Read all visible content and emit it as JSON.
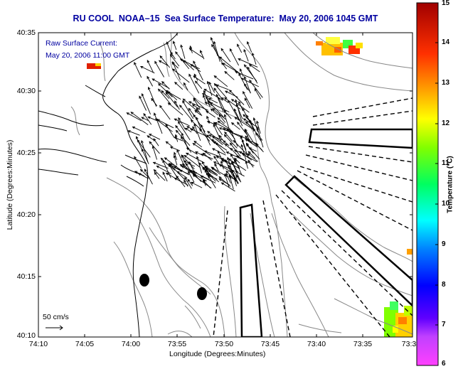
{
  "title": "RU COOL  NOAA–15  Sea Surface Temperature:  May 20, 2006 1045 GMT",
  "legend_text": {
    "line1": "Raw Surface Current:",
    "line2": "May 20, 2006 11:00 GMT",
    "scale": "50 cm/s"
  },
  "axes": {
    "xlabel": "Longitude (Degrees:Minutes)",
    "ylabel": "Latitude (Degrees:Minutes)",
    "xticks": [
      "74:10",
      "74:05",
      "74:00",
      "73:55",
      "73:50",
      "73:45",
      "73:40",
      "73:35",
      "73:3"
    ],
    "yticks": [
      "40:35",
      "40:30",
      "40:25",
      "40:20",
      "40:15",
      "40:10"
    ]
  },
  "colorbar": {
    "title": "Temperature (°C)",
    "ticks": [
      "15",
      "14",
      "13",
      "12",
      "11",
      "10",
      "9",
      "8",
      "7",
      "6"
    ],
    "min": 6,
    "max": 15
  },
  "colors": {
    "title": "#0000a0",
    "contour": "#888888",
    "vectors": "#000000"
  }
}
